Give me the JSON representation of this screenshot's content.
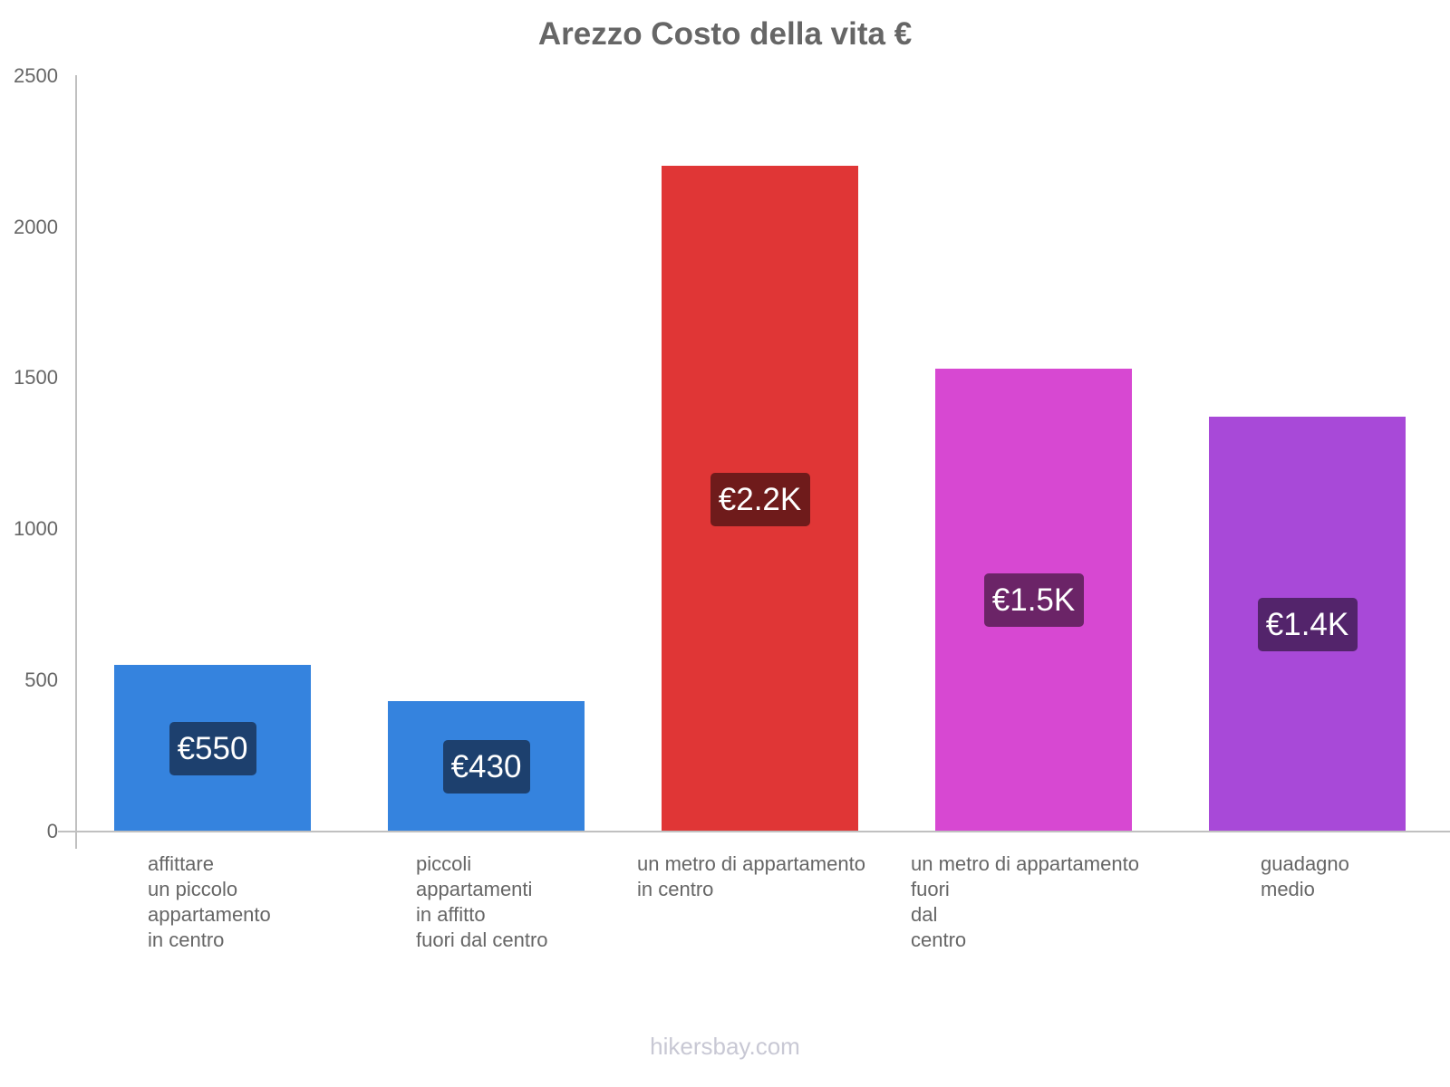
{
  "chart_data": {
    "type": "bar",
    "title": "Arezzo Costo della vita €",
    "xlabel": "",
    "ylabel": "",
    "ylim": [
      0,
      2500
    ],
    "yticks": [
      "0",
      "500",
      "1000",
      "1500",
      "2000",
      "2500"
    ],
    "grid": false,
    "legend": null,
    "categories": [
      "affittare un piccolo appartamento in centro",
      "piccoli appartamenti in affitto fuori dal centro",
      "un metro di appartamento in centro",
      "un metro di appartamento fuori dal centro",
      "guadagno medio"
    ],
    "category_label_lines": [
      "affittare\nun piccolo\nappartamento\nin centro",
      "piccoli\nappartamenti\nin affitto\nfuori dal centro",
      "un metro di appartamento\nin centro",
      "un metro di appartamento\nfuori\ndal\ncentro",
      "guadagno\nmedio"
    ],
    "values": [
      550,
      430,
      2200,
      1530,
      1370
    ],
    "data_labels": [
      "€550",
      "€430",
      "€2.2K",
      "€1.5K",
      "€1.4K"
    ],
    "colors": [
      "#3583de",
      "#3583de",
      "#e03636",
      "#d748d2",
      "#a849d8"
    ],
    "label_colors": [
      "#1d406e",
      "#1d406e",
      "#6f1b1b",
      "#6b2467",
      "#53246b"
    ]
  },
  "watermark": "hikersbay.com"
}
